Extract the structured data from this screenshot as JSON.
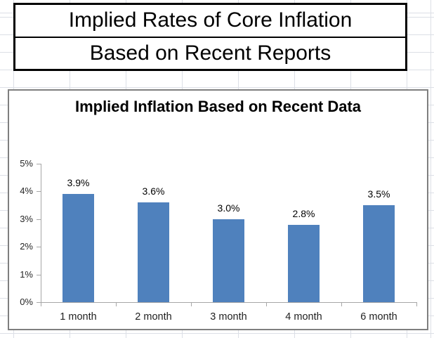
{
  "sheet": {
    "title_line1": "Implied Rates of Core Inflation",
    "title_line2": "Based on Recent Reports"
  },
  "chart_data": {
    "type": "bar",
    "title": "Implied Inflation Based on Recent Data",
    "categories": [
      "1 month",
      "2 month",
      "3 month",
      "4 month",
      "6 month"
    ],
    "values": [
      3.9,
      3.6,
      3.0,
      2.8,
      3.5
    ],
    "value_labels": [
      "3.9%",
      "3.6%",
      "3.0%",
      "2.8%",
      "3.5%"
    ],
    "y_tick_labels": [
      "5%",
      "4%",
      "3%",
      "2%",
      "1%",
      "0%"
    ],
    "ylim": [
      0,
      5
    ],
    "unit": "percent",
    "bar_color": "#4F81BD",
    "grid": false,
    "legend": "none",
    "xlabel": "",
    "ylabel": ""
  }
}
